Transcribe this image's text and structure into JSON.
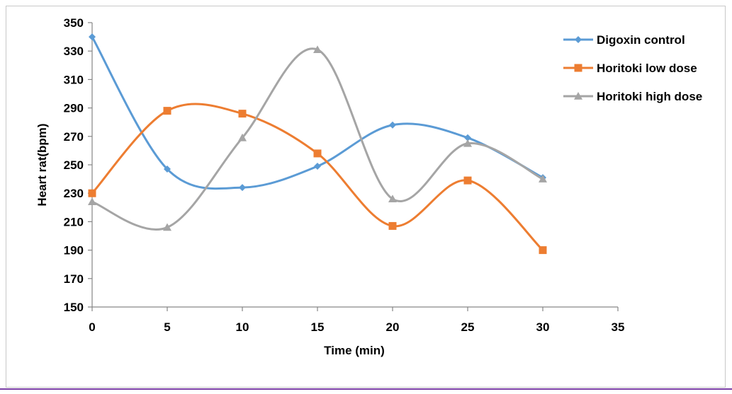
{
  "chart_data": {
    "type": "scatter",
    "title": "",
    "xlabel": "Time (min)",
    "ylabel": "Heart rat(bpm)",
    "xlim": [
      0,
      35
    ],
    "ylim": [
      150,
      350
    ],
    "xticks": [
      0,
      5,
      10,
      15,
      20,
      25,
      30,
      35
    ],
    "yticks": [
      150,
      170,
      190,
      210,
      230,
      250,
      270,
      290,
      310,
      330,
      350
    ],
    "grid": false,
    "smooth_lines": true,
    "legend_position": "right",
    "x": [
      0,
      5,
      10,
      15,
      20,
      25,
      30
    ],
    "series": [
      {
        "name": "Digoxin control",
        "color": "#5b9bd5",
        "marker": "diamond",
        "values": [
          340,
          247,
          234,
          249,
          278,
          269,
          241
        ]
      },
      {
        "name": "Horitoki low dose",
        "color": "#ed7d31",
        "marker": "square",
        "values": [
          230,
          288,
          286,
          258,
          207,
          239,
          190
        ]
      },
      {
        "name": "Horitoki high dose",
        "color": "#a5a5a5",
        "marker": "triangle",
        "values": [
          224,
          206,
          269,
          331,
          226,
          265,
          240
        ]
      }
    ]
  }
}
